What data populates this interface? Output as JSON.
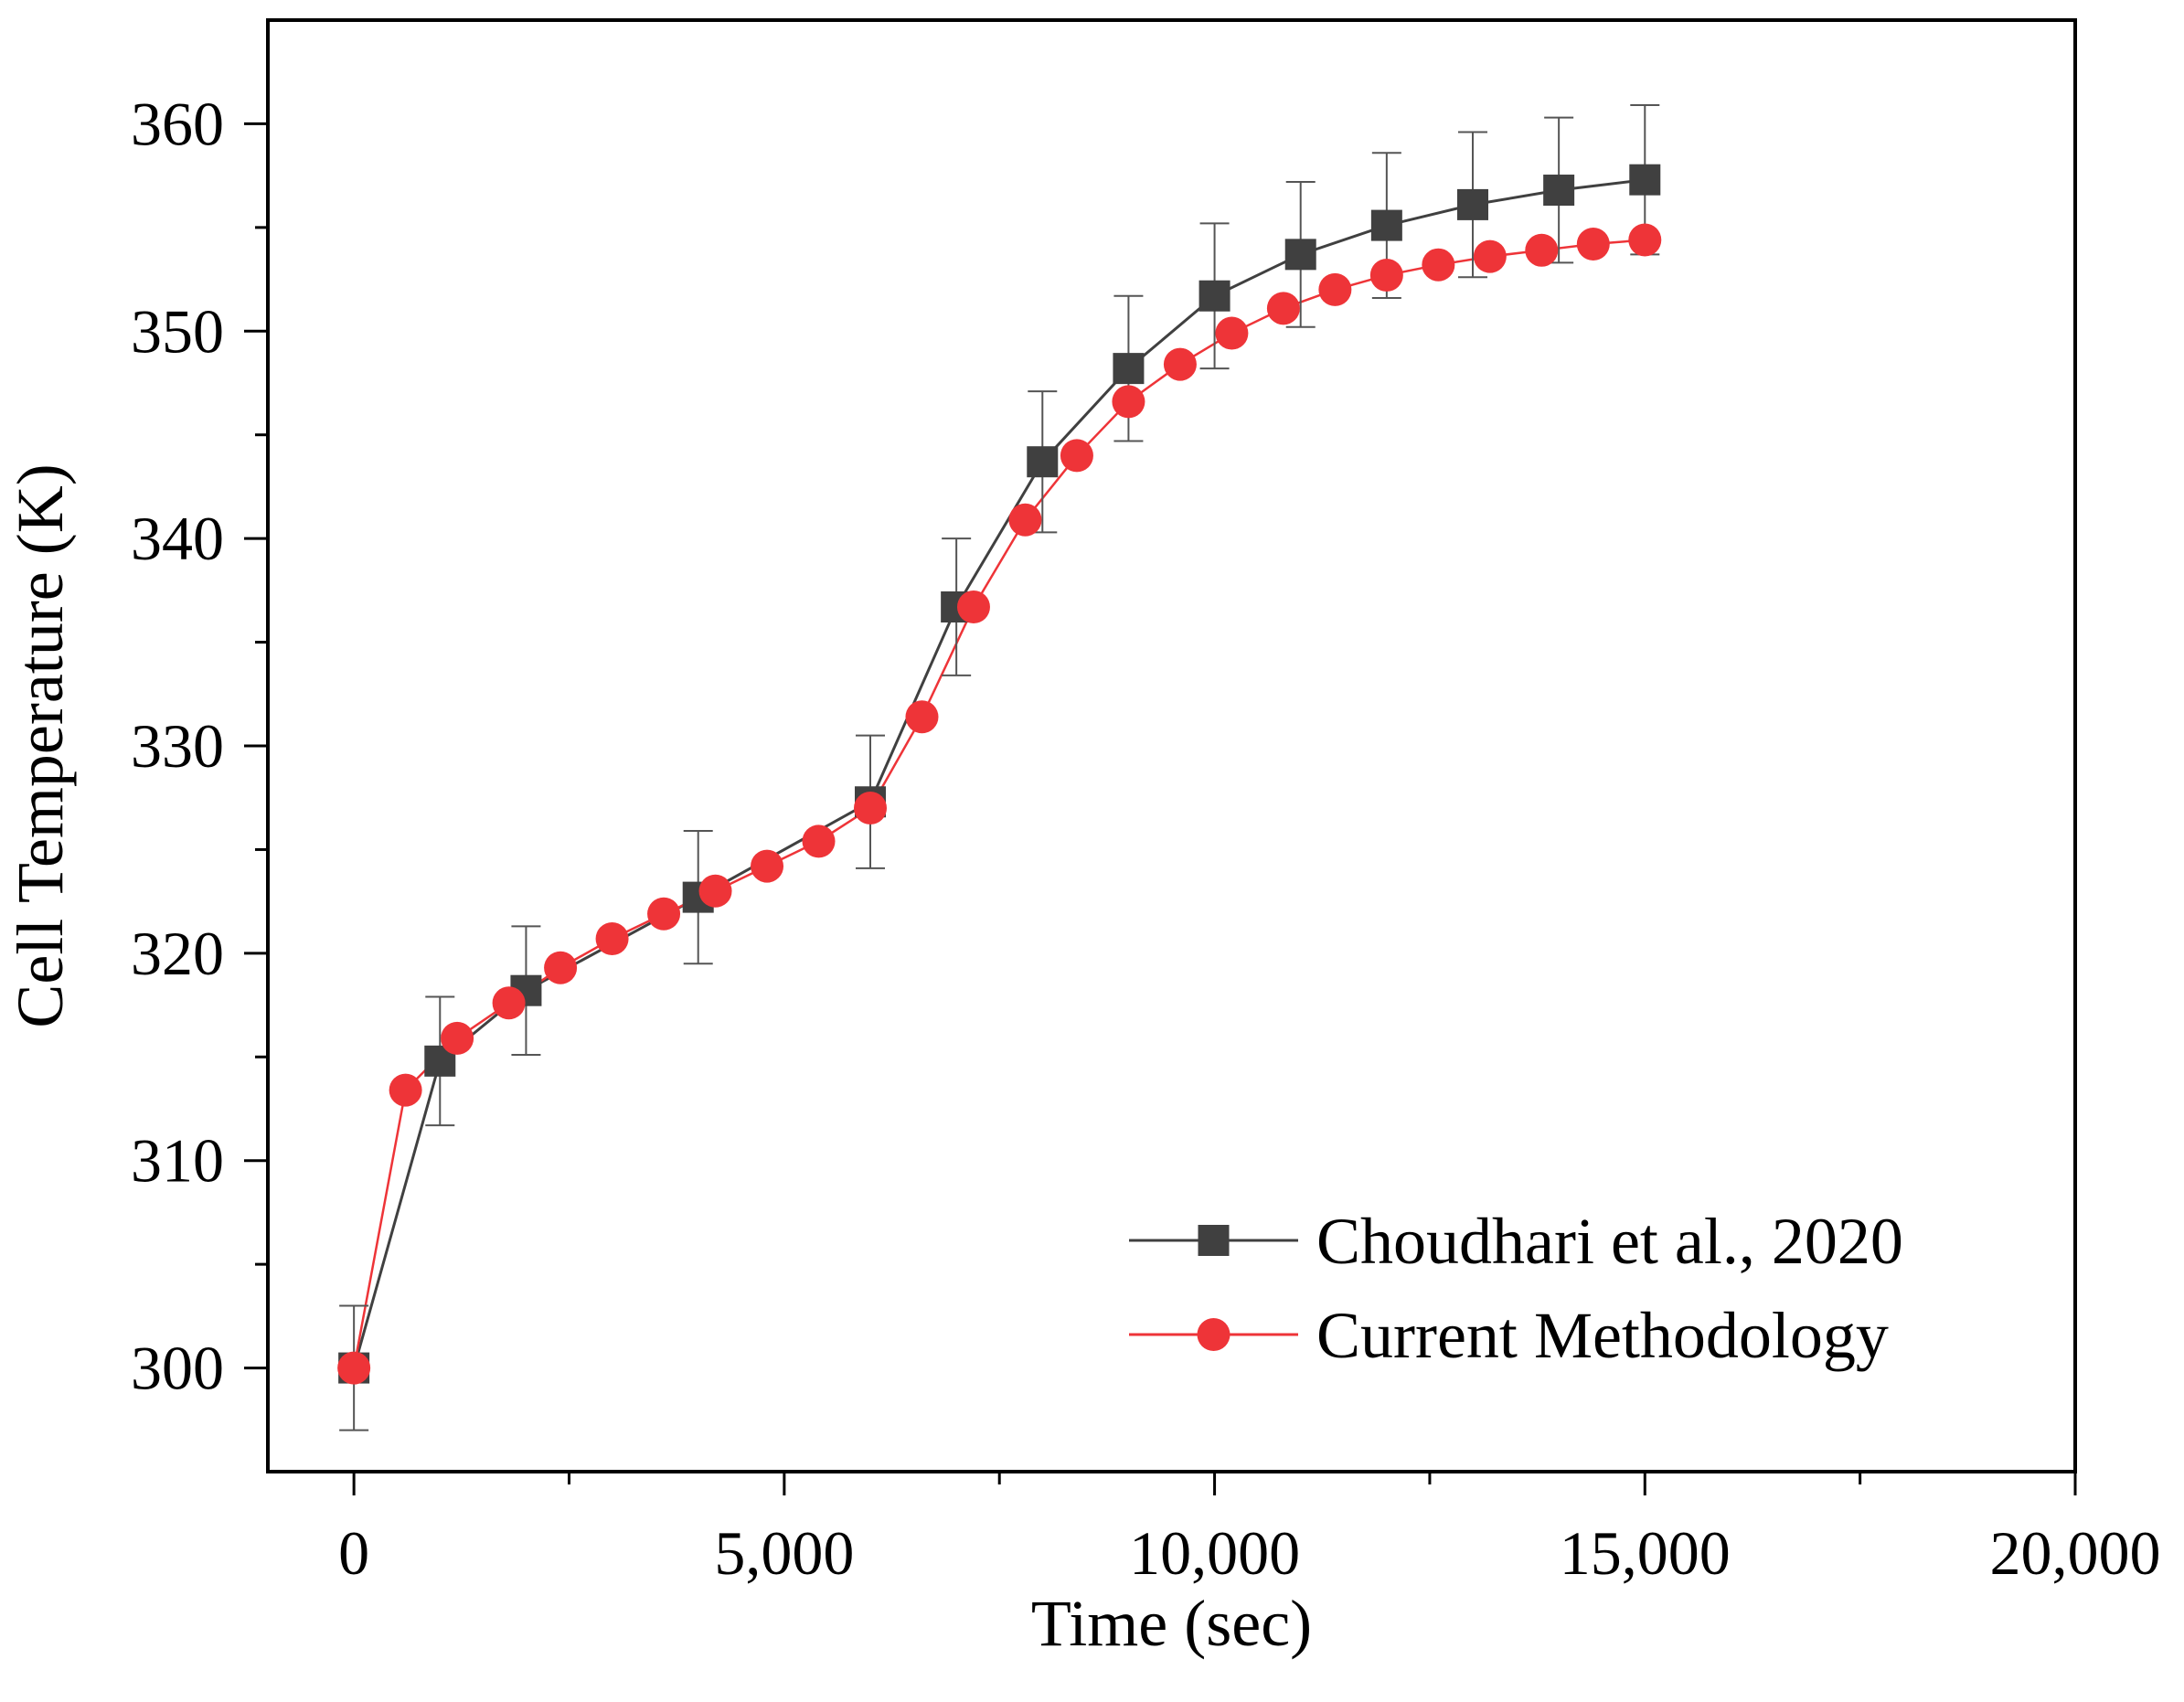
{
  "chart_data": {
    "type": "line",
    "xlabel": "Time (sec)",
    "ylabel": "Cell Temperature (K)",
    "xlim": [
      -1000,
      20000
    ],
    "ylim": [
      295,
      365
    ],
    "x_ticks": [
      0,
      5000,
      10000,
      15000,
      20000
    ],
    "x_tick_labels": [
      "0",
      "5,000",
      "10,000",
      "15,000",
      "20,000"
    ],
    "y_ticks": [
      300,
      310,
      320,
      330,
      340,
      350,
      360
    ],
    "y_tick_labels": [
      "300",
      "310",
      "320",
      "330",
      "340",
      "350",
      "360"
    ],
    "grid": false,
    "legend_position": "bottom-right",
    "series": [
      {
        "name": "Choudhari et al., 2020",
        "color": "#404040",
        "marker": "square",
        "x": [
          0,
          1000,
          2000,
          4000,
          6000,
          7000,
          8000,
          9000,
          10000,
          11000,
          12000,
          13000,
          14000,
          15000
        ],
        "y": [
          300.0,
          314.8,
          318.2,
          322.7,
          327.3,
          336.7,
          343.7,
          348.2,
          351.7,
          353.7,
          355.1,
          356.1,
          356.8,
          357.3
        ],
        "error": [
          3.0,
          3.1,
          3.1,
          3.2,
          3.2,
          3.3,
          3.4,
          3.5,
          3.5,
          3.5,
          3.5,
          3.5,
          3.5,
          3.6
        ]
      },
      {
        "name": "Current Methodology",
        "color": "#ee3438",
        "marker": "circle",
        "x": [
          0,
          600,
          1200,
          1800,
          2400,
          3000,
          3600,
          4200,
          4800,
          5400,
          6000,
          6600,
          7200,
          7800,
          8400,
          9000,
          9600,
          10200,
          10800,
          11400,
          12000,
          12600,
          13200,
          13800,
          14400,
          15000
        ],
        "y": [
          300.0,
          313.4,
          315.9,
          317.6,
          319.3,
          320.7,
          321.9,
          323.0,
          324.2,
          325.4,
          327.0,
          331.4,
          336.7,
          340.9,
          344.0,
          346.6,
          348.4,
          349.9,
          351.1,
          352.0,
          352.7,
          353.2,
          353.6,
          353.9,
          354.2,
          354.4
        ]
      }
    ]
  }
}
